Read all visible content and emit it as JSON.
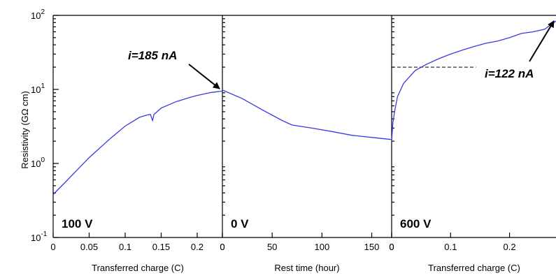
{
  "chart_data": {
    "type": "line",
    "ylabel": "Resistivity (GΩ cm)",
    "y_scale": "log",
    "ylim": [
      0.1,
      100
    ],
    "y_ticks": [
      {
        "value": 0.1,
        "base": "10",
        "exp": "-1"
      },
      {
        "value": 1,
        "base": "10",
        "exp": "0"
      },
      {
        "value": 10,
        "base": "10",
        "exp": "1"
      },
      {
        "value": 100,
        "base": "10",
        "exp": "2"
      }
    ],
    "panels": [
      {
        "xlabel": "Transferred charge (C)",
        "xlim": [
          0,
          0.235
        ],
        "x_ticks": [
          "0",
          "0.05",
          "0.1",
          "0.15",
          "0.2",
          "0"
        ],
        "x_tick_values": [
          0,
          0.05,
          0.1,
          0.15,
          0.2,
          0.235
        ],
        "voltage": "100 V",
        "annotation": "i=185 nA",
        "series": [
          {
            "x": [
              0,
              0.02,
              0.05,
              0.08,
              0.1,
              0.12,
              0.13,
              0.135,
              0.138,
              0.14,
              0.15,
              0.17,
              0.19,
              0.2,
              0.22,
              0.235
            ],
            "y": [
              0.38,
              0.6,
              1.2,
              2.2,
              3.2,
              4.2,
              4.5,
              4.6,
              3.8,
              4.6,
              5.6,
              6.8,
              7.8,
              8.3,
              9.1,
              9.5
            ]
          }
        ]
      },
      {
        "xlabel": "Rest time (hour)",
        "xlim": [
          0,
          170
        ],
        "x_ticks": [
          "0",
          "50",
          "100",
          "150",
          "0"
        ],
        "x_tick_values": [
          0,
          50,
          100,
          150,
          170
        ],
        "voltage": "0 V",
        "series": [
          {
            "x": [
              0,
              20,
              40,
              60,
              70,
              90,
              110,
              130,
              150,
              170
            ],
            "y": [
              9.8,
              7.5,
              5.3,
              3.8,
              3.3,
              3.0,
              2.7,
              2.4,
              2.25,
              2.1
            ]
          }
        ]
      },
      {
        "xlabel": "Transferred charge (C)",
        "xlim": [
          0,
          0.28
        ],
        "x_ticks": [
          "0",
          "0.1",
          "0.2"
        ],
        "x_tick_values": [
          0,
          0.1,
          0.2
        ],
        "voltage": "600 V",
        "annotation": "i=122 nA",
        "reference_line": {
          "y": 20,
          "x_from": 0,
          "x_to": 0.143
        },
        "series": [
          {
            "x": [
              0,
              0.002,
              0.005,
              0.01,
              0.02,
              0.04,
              0.06,
              0.08,
              0.1,
              0.12,
              0.14,
              0.16,
              0.18,
              0.2,
              0.22,
              0.24,
              0.26,
              0.27,
              0.28
            ],
            "y": [
              2.0,
              3.5,
              5.0,
              8.0,
              12,
              18,
              22,
              26,
              30,
              34,
              38,
              42,
              45,
              50,
              57,
              60,
              65,
              75,
              85
            ]
          }
        ]
      }
    ]
  }
}
